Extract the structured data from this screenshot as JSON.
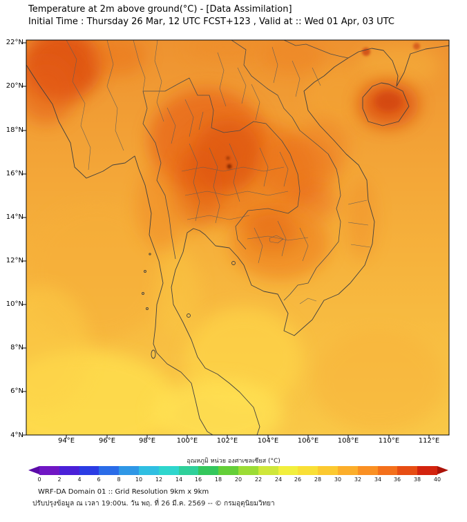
{
  "chart_data": {
    "type": "heatmap",
    "title": "Temperature at 2m above ground(°C) - [Data Assimilation]",
    "subtitle": "Initial Time : Thursday 26 Mar, 12 UTC FCST+123 , Valid at :: Wed 01 Apr, 03 UTC",
    "xlim": [
      92,
      113
    ],
    "ylim": [
      4,
      22.2
    ],
    "x_ticks": [
      "94°E",
      "96°E",
      "98°E",
      "100°E",
      "102°E",
      "104°E",
      "106°E",
      "108°E",
      "110°E",
      "112°E"
    ],
    "y_ticks": [
      "22°N",
      "20°N",
      "18°N",
      "16°N",
      "14°N",
      "12°N",
      "10°N",
      "8°N",
      "6°N",
      "4°N"
    ],
    "grid": false,
    "colorbar": {
      "label": "อุณหภูมิ หน่วย องศาเซลเซียส (°C)",
      "min": 0,
      "max": 40,
      "step": 2,
      "ticks": [
        "0",
        "2",
        "4",
        "6",
        "8",
        "10",
        "12",
        "14",
        "16",
        "18",
        "20",
        "22",
        "24",
        "26",
        "28",
        "30",
        "32",
        "34",
        "36",
        "38",
        "40"
      ],
      "segment_colors": [
        "#7016c4",
        "#4a20d8",
        "#2b3ce4",
        "#2a6ce8",
        "#2f97e6",
        "#30bfe2",
        "#2fd6cd",
        "#2fd09a",
        "#34c75c",
        "#64cf38",
        "#9cdc35",
        "#cfe73a",
        "#f2ef3d",
        "#f9df36",
        "#fcc930",
        "#fcae2a",
        "#fa9023",
        "#f4701b",
        "#e74d13",
        "#d3230e"
      ],
      "arrow_left_color": "#5b0ba8",
      "arrow_right_color": "#ab1208"
    },
    "field_summary": [
      {
        "region": "Upper Myanmar (top-left, 20-22N 92-95E)",
        "approx_temp_c": "38-40"
      },
      {
        "region": "Northern and Central Thailand / Laos (15-19N 99-106E)",
        "approx_temp_c": "36-40"
      },
      {
        "region": "Cambodia lowlands (11-14N 103-106E)",
        "approx_temp_c": "34-38"
      },
      {
        "region": "Hainan Island (19N 110E)",
        "approx_temp_c": "38-40"
      },
      {
        "region": "Andaman Sea",
        "approx_temp_c": "30-32"
      },
      {
        "region": "Gulf of Thailand",
        "approx_temp_c": "28-32"
      },
      {
        "region": "Southern peninsula and Malaysia (bright yellow)",
        "approx_temp_c": "26-30"
      },
      {
        "region": "South China Sea (south-east corner)",
        "approx_temp_c": "28-30"
      }
    ]
  },
  "footer": {
    "model_info": "WRF-DA Domain 01 :: Grid Resolution 9km x 9km",
    "update_info": "ปรับปรุงข้อมูล ณ เวลา 19:00น. วัน พฤ. ที่ 26 มี.ค. 2569 -- © กรมอุตุนิยมวิทยา"
  }
}
